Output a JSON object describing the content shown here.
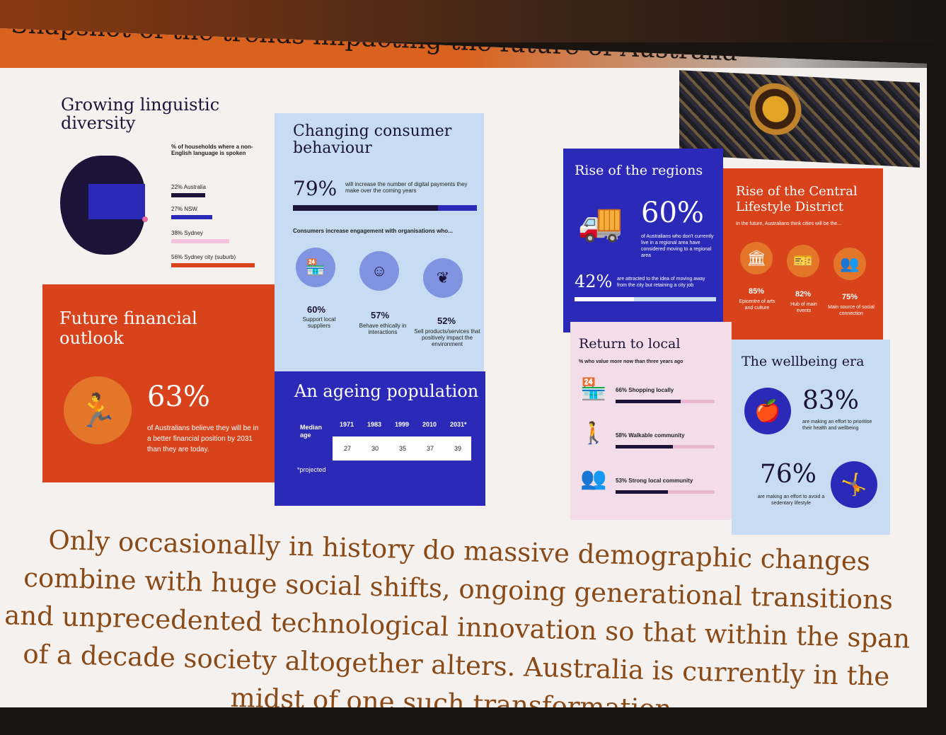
{
  "slide": {
    "title": "Snapshot of the trends impacting the future of Australia",
    "colors": {
      "orange": "#d9621e",
      "navy": "#2b2ab8",
      "lightblue": "#c7dcf2",
      "red": "#d8431c",
      "pink": "#f2dde8",
      "dark": "#1b1438"
    }
  },
  "linguistic": {
    "title": "Growing linguistic diversity",
    "legend_title": "% of households where a non-English language is spoken",
    "items": [
      {
        "label": "22% Australia",
        "value": 22
      },
      {
        "label": "27% NSW",
        "value": 27
      },
      {
        "label": "38% Sydney",
        "value": 38
      },
      {
        "label": "56% Sydney city (suburb)",
        "value": 56
      }
    ]
  },
  "consumer": {
    "title": "Changing consumer behaviour",
    "stat": "79%",
    "stat_text": "will increase the number of digital payments they make over the coming years",
    "sub": "Consumers increase engagement with organisations who...",
    "items": [
      {
        "pct": "60%",
        "label": "Support local suppliers",
        "icon": "shop-icon"
      },
      {
        "pct": "57%",
        "label": "Behave ethically in interactions",
        "icon": "head-check-icon"
      },
      {
        "pct": "52%",
        "label": "Sell products/services that positively impact the environment",
        "icon": "leaf-cup-icon"
      }
    ]
  },
  "financial": {
    "title": "Future financial outlook",
    "stat": "63%",
    "text": "of Australians believe they will be in a better financial position by 2031 than they are today."
  },
  "ageing": {
    "title": "An ageing population",
    "row_label": "Median age",
    "years": [
      "1971",
      "1983",
      "1999",
      "2010",
      "2031*"
    ],
    "ages": [
      "27",
      "30",
      "35",
      "37",
      "39"
    ],
    "note": "*projected"
  },
  "regions": {
    "title": "Rise of the regions",
    "stat": "60%",
    "stat_text": "of Australians who don't currently live in a regional area have considered moving to a regional area",
    "stat2": "42%",
    "stat2_text": "are attracted to the idea of moving away from the city but retaining a city job"
  },
  "central": {
    "title": "Rise of the Central Lifestyle District",
    "sub": "In the future, Australians think cities will be the...",
    "items": [
      {
        "pct": "85%",
        "label": "Epicentre of arts and culture"
      },
      {
        "pct": "82%",
        "label": "Hub of main events"
      },
      {
        "pct": "75%",
        "label": "Main source of social connection"
      }
    ]
  },
  "local": {
    "title": "Return to local",
    "sub": "% who value more now than three years ago",
    "items": [
      {
        "text": "66% Shopping locally",
        "value": 66
      },
      {
        "text": "58% Walkable community",
        "value": 58
      },
      {
        "text": "53% Strong local community",
        "value": 53
      }
    ]
  },
  "wellbeing": {
    "title": "The wellbeing era",
    "stat": "83%",
    "stat_text": "are making an effort to prioritise their health and wellbeing",
    "stat2": "76%",
    "stat2_text": "are making an effort to avoid a sedentary lifestyle"
  },
  "caption": "Only occasionally in history do massive demographic changes combine with huge social shifts, ongoing generational transitions and unprecedented technological innovation so that within the span of a decade society altogether alters. Australia is currently in the midst of one such transformation."
}
